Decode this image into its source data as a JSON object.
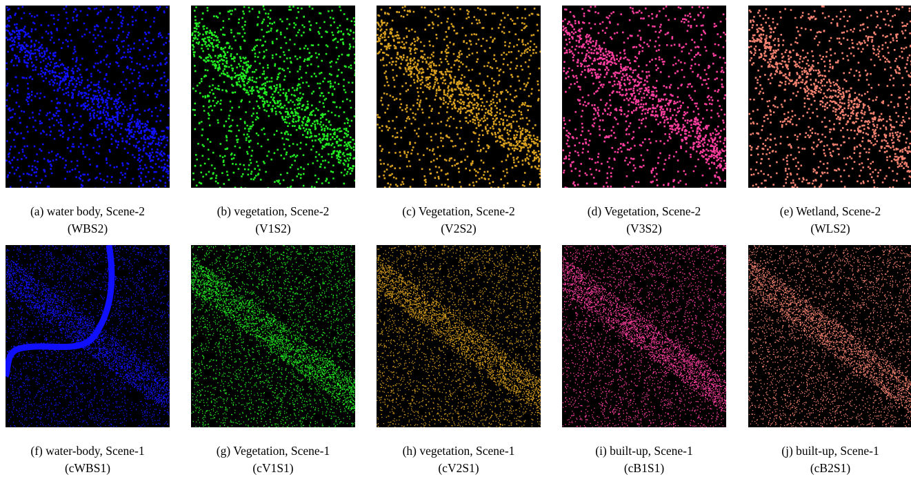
{
  "figure": {
    "panels": [
      {
        "caption": "(a) water body, Scene-2",
        "code": "(WBS2)"
      },
      {
        "caption": "(b) vegetation, Scene-2",
        "code": "(V1S2)"
      },
      {
        "caption": "(c) Vegetation, Scene-2",
        "code": "(V2S2)"
      },
      {
        "caption": "(d) Vegetation, Scene-2",
        "code": "(V3S2)"
      },
      {
        "caption": "(e) Wetland, Scene-2",
        "code": "(WLS2)"
      },
      {
        "caption": "(f) water-body, Scene-1",
        "code": "(cWBS1)"
      },
      {
        "caption": "(g) Vegetation, Scene-1",
        "code": "(cV1S1)"
      },
      {
        "caption": "(h) vegetation, Scene-1",
        "code": "(cV2S1)"
      },
      {
        "caption": "(i) built-up, Scene-1",
        "code": "(cB1S1)"
      },
      {
        "caption": "(j) built-up, Scene-1",
        "code": "(cB2S1)"
      }
    ]
  }
}
